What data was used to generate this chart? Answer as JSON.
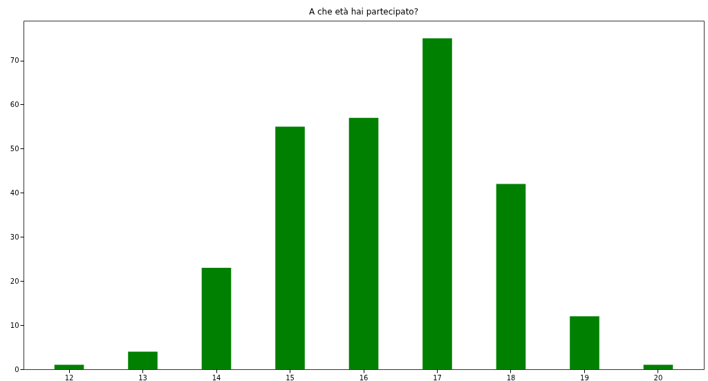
{
  "chart_data": {
    "type": "bar",
    "title": "A che età hai partecipato?",
    "categories": [
      "12",
      "13",
      "14",
      "15",
      "16",
      "17",
      "18",
      "19",
      "20"
    ],
    "values": [
      1,
      4,
      23,
      55,
      57,
      75,
      42,
      12,
      1
    ],
    "color": "#008000",
    "ylim": [
      0,
      79
    ],
    "yticks": [
      0,
      10,
      20,
      30,
      40,
      50,
      60,
      70
    ],
    "grid": false
  }
}
